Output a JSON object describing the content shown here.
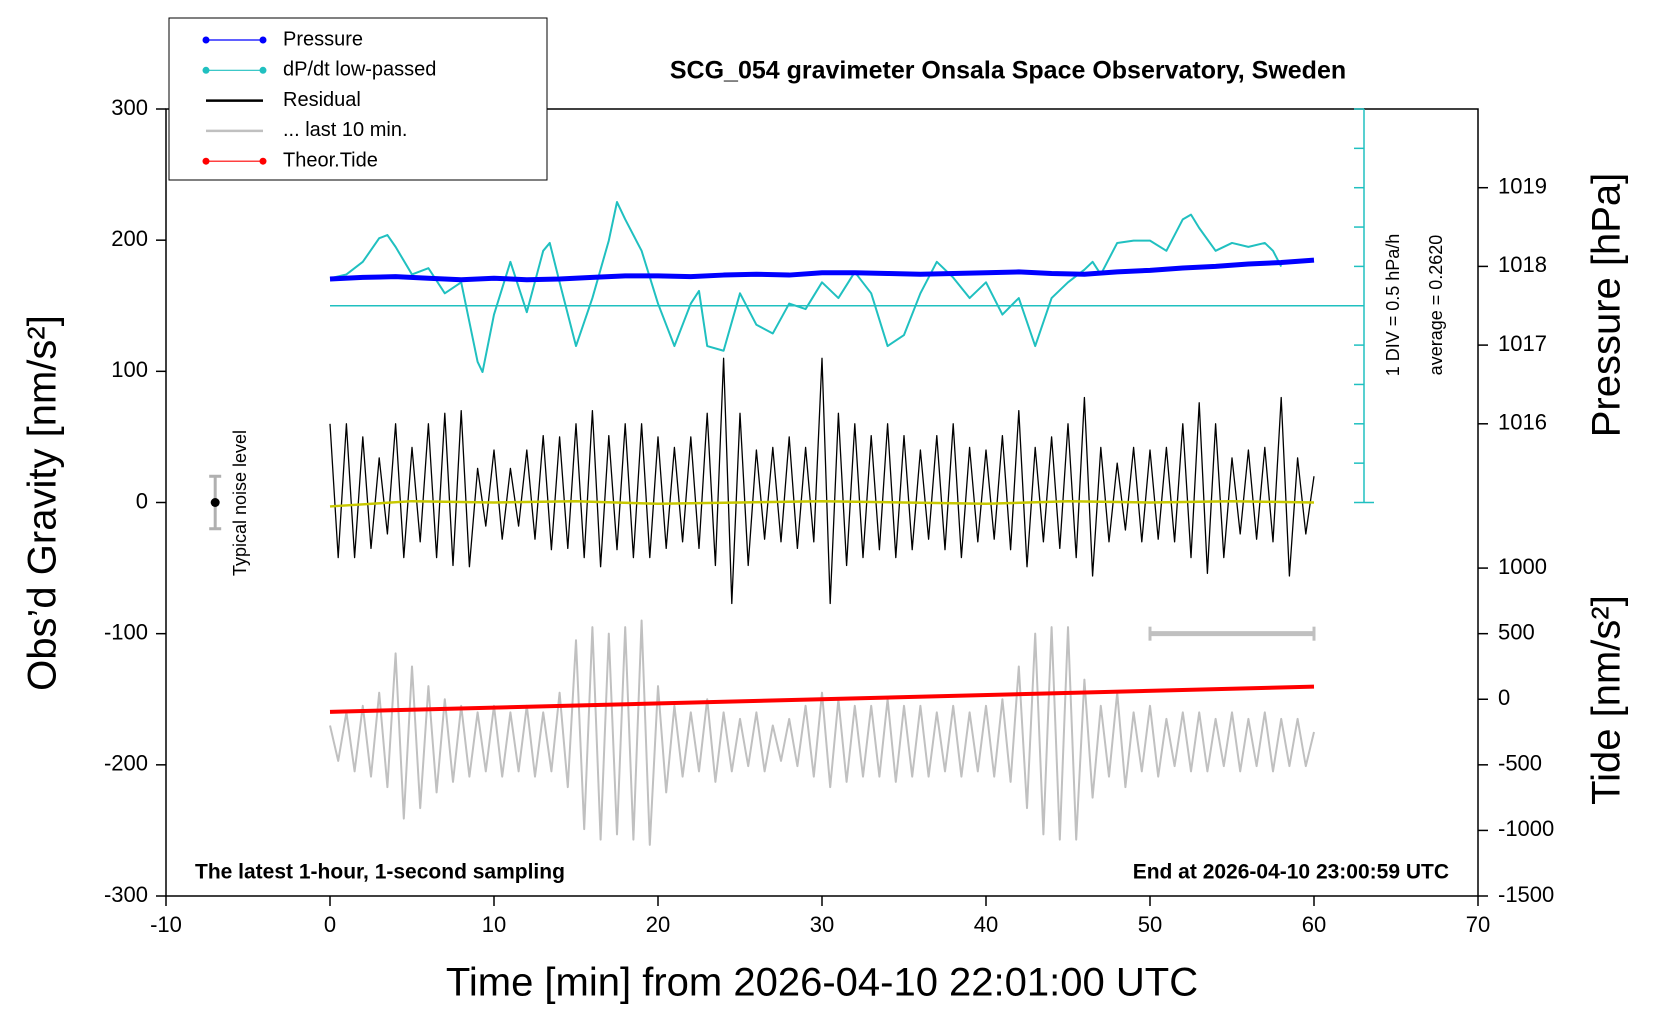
{
  "chart_data": {
    "type": "line",
    "title": "SCG_054 gravimeter Onsala Space Observatory, Sweden",
    "xlabel": "Time [min] from 2026-04-10 22:01:00 UTC",
    "ylabel": "Obs’d Gravity [nm/s²]",
    "y2label": "Pressure [hPa]",
    "y3label": "Tide [nm/s²]",
    "annotations": [
      "The latest 1-hour, 1-second sampling",
      "End at 2026-04-10 23:00:59 UTC"
    ],
    "xlim": [
      -10,
      70
    ],
    "xticks": [
      -10,
      0,
      10,
      20,
      30,
      40,
      50,
      60,
      70
    ],
    "ylim": [
      -300,
      300
    ],
    "yticks": [
      -300,
      -200,
      -100,
      0,
      100,
      200,
      300
    ],
    "y2lim": [
      1010,
      1020
    ],
    "y2ticks": [
      1016,
      1017,
      1018,
      1019
    ],
    "y3lim": [
      -1500,
      4500
    ],
    "y3ticks": [
      -1500,
      -1000,
      -500,
      0,
      500,
      1000
    ],
    "y4lim": [
      -7.238,
      2.762
    ],
    "y4ticks": [
      -2.238,
      -1.738,
      -1.238,
      -0.738,
      -0.238,
      0.262,
      0.762,
      1.262,
      1.762,
      2.262,
      2.762
    ],
    "scale_labels": [
      "1 DIV = 0.5 hPa/h",
      "average = 0.2620"
    ],
    "average_line": 0.262,
    "legend": "upper left",
    "noise": {
      "label": "Typical noise level",
      "x": -7,
      "value": 0,
      "error": 20
    },
    "scale_bar": {
      "x": [
        50,
        60
      ],
      "y": -100
    },
    "series": [
      {
        "name": "Pressure",
        "color": "#0000ff",
        "axis": "y2",
        "marker": true,
        "x": [
          0,
          2,
          4,
          6,
          8,
          10,
          12,
          14,
          16,
          18,
          20,
          22,
          24,
          26,
          28,
          30,
          32,
          34,
          36,
          38,
          40,
          42,
          44,
          46,
          48,
          50,
          52,
          54,
          56,
          58,
          60
        ],
        "values": [
          1017.84,
          1017.86,
          1017.87,
          1017.85,
          1017.83,
          1017.85,
          1017.83,
          1017.84,
          1017.86,
          1017.88,
          1017.88,
          1017.87,
          1017.89,
          1017.9,
          1017.89,
          1017.92,
          1017.92,
          1017.91,
          1017.9,
          1017.91,
          1017.92,
          1017.93,
          1017.91,
          1017.9,
          1017.93,
          1017.95,
          1017.98,
          1018.0,
          1018.03,
          1018.05,
          1018.08
        ]
      },
      {
        "name": "dP/dt low-passed",
        "color": "#20c0c0",
        "axis": "y4",
        "marker": true,
        "x": [
          0,
          1,
          2,
          3,
          3.5,
          4,
          5,
          6,
          7,
          8,
          9,
          9.3,
          10,
          11,
          12,
          13,
          13.4,
          14,
          15,
          16,
          17,
          17.5,
          18,
          19,
          20,
          21,
          22,
          22.5,
          23,
          24,
          25,
          26,
          27,
          28,
          29,
          30,
          31,
          32,
          33,
          34,
          35,
          36,
          37,
          38,
          39,
          40,
          41,
          42,
          43,
          44,
          45,
          46,
          46.5,
          47,
          48,
          49,
          50,
          51,
          52,
          52.5,
          53,
          54,
          55,
          56,
          57,
          57.5,
          58
        ],
        "values": [
          0.61,
          0.66,
          0.82,
          1.12,
          1.16,
          1.01,
          0.66,
          0.74,
          0.42,
          0.56,
          -0.45,
          -0.58,
          0.15,
          0.82,
          0.18,
          0.96,
          1.06,
          0.56,
          -0.25,
          0.36,
          1.09,
          1.58,
          1.36,
          0.96,
          0.29,
          -0.25,
          0.29,
          0.45,
          -0.25,
          -0.31,
          0.42,
          0.02,
          -0.09,
          0.29,
          0.22,
          0.56,
          0.36,
          0.69,
          0.42,
          -0.25,
          -0.11,
          0.42,
          0.82,
          0.62,
          0.36,
          0.56,
          0.15,
          0.36,
          -0.25,
          0.36,
          0.56,
          0.72,
          0.82,
          0.66,
          1.06,
          1.09,
          1.09,
          0.96,
          1.36,
          1.42,
          1.25,
          0.96,
          1.06,
          1.01,
          1.06,
          0.96,
          0.76
        ]
      },
      {
        "name": "Residual",
        "color": "#000000",
        "axis": "y",
        "marker": false,
        "x": [
          0,
          0.5,
          1,
          1.5,
          2,
          2.5,
          3,
          3.5,
          4,
          4.5,
          5,
          5.5,
          6,
          6.5,
          7,
          7.5,
          8,
          8.5,
          9,
          9.5,
          10,
          10.5,
          11,
          11.5,
          12,
          12.5,
          13,
          13.5,
          14,
          14.5,
          15,
          15.5,
          16,
          16.5,
          17,
          17.5,
          18,
          18.5,
          19,
          19.5,
          20,
          20.5,
          21,
          21.5,
          22,
          22.5,
          23,
          23.5,
          24,
          24.5,
          25,
          25.5,
          26,
          26.5,
          27,
          27.5,
          28,
          28.5,
          29,
          29.5,
          30,
          30.5,
          31,
          31.5,
          32,
          32.5,
          33,
          33.5,
          34,
          34.5,
          35,
          35.5,
          36,
          36.5,
          37,
          37.5,
          38,
          38.5,
          39,
          39.5,
          40,
          40.5,
          41,
          41.5,
          42,
          42.5,
          43,
          43.5,
          44,
          44.5,
          45,
          45.5,
          46,
          46.5,
          47,
          47.5,
          48,
          48.5,
          49,
          49.5,
          50,
          50.5,
          51,
          51.5,
          52,
          52.5,
          53,
          53.5,
          54,
          54.5,
          55,
          55.5,
          56,
          56.5,
          57,
          57.5,
          58,
          58.5,
          59,
          59.5,
          60
        ],
        "values": [
          60,
          -42,
          60,
          -42,
          50,
          -35,
          34,
          -24,
          60,
          -42,
          42,
          -30,
          60,
          -42,
          68,
          -48,
          70,
          -49,
          26,
          -18,
          40,
          -28,
          26,
          -18,
          40,
          -28,
          51,
          -36,
          50,
          -35,
          60,
          -42,
          70,
          -49,
          51,
          -36,
          60,
          -42,
          60,
          -42,
          50,
          -35,
          42,
          -30,
          50,
          -35,
          68,
          -48,
          110,
          -77,
          68,
          -48,
          40,
          -28,
          42,
          -30,
          50,
          -35,
          42,
          -30,
          110,
          -77,
          68,
          -48,
          60,
          -42,
          51,
          -36,
          60,
          -42,
          51,
          -36,
          40,
          -28,
          51,
          -36,
          60,
          -42,
          42,
          -30,
          40,
          -28,
          51,
          -36,
          70,
          -49,
          42,
          -30,
          50,
          -35,
          60,
          -42,
          80,
          -56,
          42,
          -30,
          30,
          -21,
          42,
          -30,
          40,
          -28,
          42,
          -30,
          60,
          -42,
          76,
          -54,
          60,
          -42,
          34,
          -24,
          40,
          -28,
          42,
          -30,
          80,
          -56,
          34,
          -24,
          20
        ]
      },
      {
        "name": "... last 10 min.",
        "color": "#c0c0c0",
        "axis": "y",
        "marker": false,
        "x": [
          0,
          0.5,
          1,
          1.5,
          2,
          2.5,
          3,
          3.5,
          4,
          4.5,
          5,
          5.5,
          6,
          6.5,
          7,
          7.5,
          8,
          8.5,
          9,
          9.5,
          10,
          10.5,
          11,
          11.5,
          12,
          12.5,
          13,
          13.5,
          14,
          14.5,
          15,
          15.5,
          16,
          16.5,
          17,
          17.5,
          18,
          18.5,
          19,
          19.5,
          20,
          20.5,
          21,
          21.5,
          22,
          22.5,
          23,
          23.5,
          24,
          24.5,
          25,
          25.5,
          26,
          26.5,
          27,
          27.5,
          28,
          28.5,
          29,
          29.5,
          30,
          30.5,
          31,
          31.5,
          32,
          32.5,
          33,
          33.5,
          34,
          34.5,
          35,
          35.5,
          36,
          36.5,
          37,
          37.5,
          38,
          38.5,
          39,
          39.5,
          40,
          40.5,
          41,
          41.5,
          42,
          42.5,
          43,
          43.5,
          44,
          44.5,
          45,
          45.5,
          46,
          46.5,
          47,
          47.5,
          48,
          48.5,
          49,
          49.5,
          50,
          50.5,
          51,
          51.5,
          52,
          52.5,
          53,
          53.5,
          54,
          54.5,
          55,
          55.5,
          56,
          56.5,
          57,
          57.5,
          58,
          58.5,
          59,
          59.5,
          60
        ],
        "values": [
          -170,
          -197,
          -160,
          -205,
          -155,
          -209,
          -145,
          -217,
          -115,
          -241,
          -125,
          -233,
          -140,
          -221,
          -150,
          -213,
          -155,
          -209,
          -160,
          -205,
          -155,
          -209,
          -160,
          -205,
          -155,
          -209,
          -160,
          -205,
          -145,
          -217,
          -105,
          -249,
          -95,
          -257,
          -100,
          -253,
          -95,
          -257,
          -90,
          -261,
          -140,
          -221,
          -155,
          -209,
          -160,
          -205,
          -150,
          -213,
          -160,
          -205,
          -165,
          -201,
          -160,
          -205,
          -170,
          -197,
          -165,
          -201,
          -155,
          -209,
          -145,
          -217,
          -150,
          -213,
          -155,
          -209,
          -155,
          -209,
          -150,
          -213,
          -155,
          -209,
          -155,
          -209,
          -160,
          -205,
          -155,
          -209,
          -160,
          -205,
          -155,
          -209,
          -150,
          -213,
          -125,
          -233,
          -100,
          -253,
          -95,
          -257,
          -95,
          -257,
          -135,
          -225,
          -155,
          -209,
          -145,
          -217,
          -160,
          -205,
          -155,
          -209,
          -165,
          -201,
          -160,
          -205,
          -160,
          -205,
          -165,
          -201,
          -160,
          -205,
          -165,
          -201,
          -160,
          -205,
          -165,
          -201,
          -165,
          -201,
          -175
        ]
      },
      {
        "name": "Theor.Tide",
        "color": "#ff0000",
        "axis": "y3",
        "marker": true,
        "x": [
          0,
          60
        ],
        "values": [
          -96,
          96
        ]
      },
      {
        "color": "#c8c800",
        "axis": "y",
        "x": [
          0,
          5,
          10,
          15,
          20,
          25,
          30,
          35,
          40,
          45,
          50,
          55,
          60
        ],
        "values": [
          -3,
          1,
          0,
          1,
          -1,
          0,
          1,
          0,
          -1,
          1,
          0,
          1,
          0
        ]
      }
    ]
  }
}
